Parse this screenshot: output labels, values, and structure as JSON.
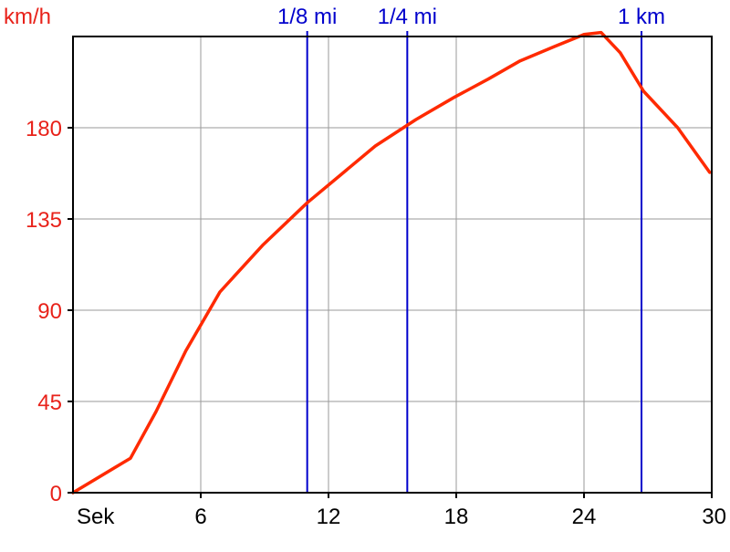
{
  "chart_data": {
    "type": "line",
    "ylabel": "km/h",
    "xlabel": "Sek",
    "xlim": [
      0,
      30
    ],
    "ylim": [
      0,
      225
    ],
    "x_ticks": [
      6,
      12,
      18,
      24,
      30
    ],
    "x_tick_labels": [
      "6",
      "12",
      "18",
      "24",
      "30"
    ],
    "y_ticks": [
      0,
      45,
      90,
      135,
      180
    ],
    "y_tick_labels": [
      "0",
      "45",
      "90",
      "135",
      "180"
    ],
    "grid": true,
    "series": [
      {
        "color": "#ff2a00",
        "x": [
          0,
          2.7,
          3.9,
          5.3,
          6.9,
          8.9,
          11.0,
          12.6,
          14.2,
          16.1,
          17.9,
          19.5,
          21.0,
          22.6,
          24.0,
          24.8,
          25.7,
          26.8,
          28.4,
          29.9
        ],
        "y": [
          0,
          17,
          40,
          70,
          99,
          122,
          143,
          157,
          171,
          184,
          195,
          204,
          213,
          220,
          226,
          227,
          217,
          198,
          180,
          158
        ]
      }
    ],
    "markers": [
      {
        "label": "1/8 mi",
        "x": 11.0,
        "color": "#0000cc"
      },
      {
        "label": "1/4 mi",
        "x": 15.7,
        "color": "#0000cc"
      },
      {
        "label": "1 km",
        "x": 26.7,
        "color": "#0000cc"
      }
    ],
    "colors": {
      "axis_label": "#e8221a",
      "tick_label_y": "#e8221a",
      "tick_label_x": "#000000",
      "grid": "#9a9a9a",
      "frame": "#000000"
    }
  }
}
